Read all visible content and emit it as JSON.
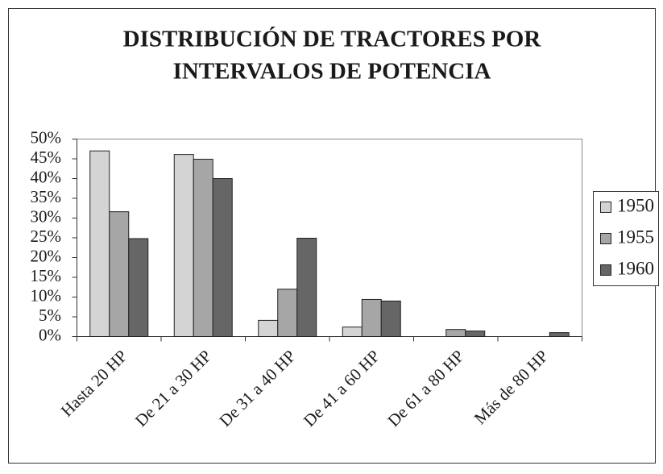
{
  "chart_data": {
    "type": "bar",
    "title": [
      "DISTRIBUCIÓN DE TRACTORES POR",
      "INTERVALOS DE POTENCIA"
    ],
    "categories": [
      "Hasta 20 HP",
      "De 21 a 30 HP",
      "De 31 a 40 HP",
      "De 41 a 60 HP",
      "De 61 a 80 HP",
      "Más de 80 HP"
    ],
    "series": [
      {
        "name": "1950",
        "color": "#d4d4d4",
        "values": [
          47,
          46.1,
          4.1,
          2.4,
          0,
          0
        ]
      },
      {
        "name": "1955",
        "color": "#a6a6a6",
        "values": [
          31.6,
          44.9,
          12,
          9.4,
          1.8,
          0
        ]
      },
      {
        "name": "1960",
        "color": "#666666",
        "values": [
          24.8,
          40,
          24.9,
          9,
          1.4,
          1
        ]
      }
    ],
    "ylim": [
      0,
      50
    ],
    "yticks": [
      {
        "value": 0,
        "label": "0%"
      },
      {
        "value": 5,
        "label": "5%"
      },
      {
        "value": 10,
        "label": "10%"
      },
      {
        "value": 15,
        "label": "15%"
      },
      {
        "value": 20,
        "label": "20%"
      },
      {
        "value": 25,
        "label": "25%"
      },
      {
        "value": 30,
        "label": "30%"
      },
      {
        "value": 35,
        "label": "35%"
      },
      {
        "value": 40,
        "label": "40%"
      },
      {
        "value": 45,
        "label": "45%"
      },
      {
        "value": 50,
        "label": "50%"
      }
    ],
    "legend": "right"
  }
}
